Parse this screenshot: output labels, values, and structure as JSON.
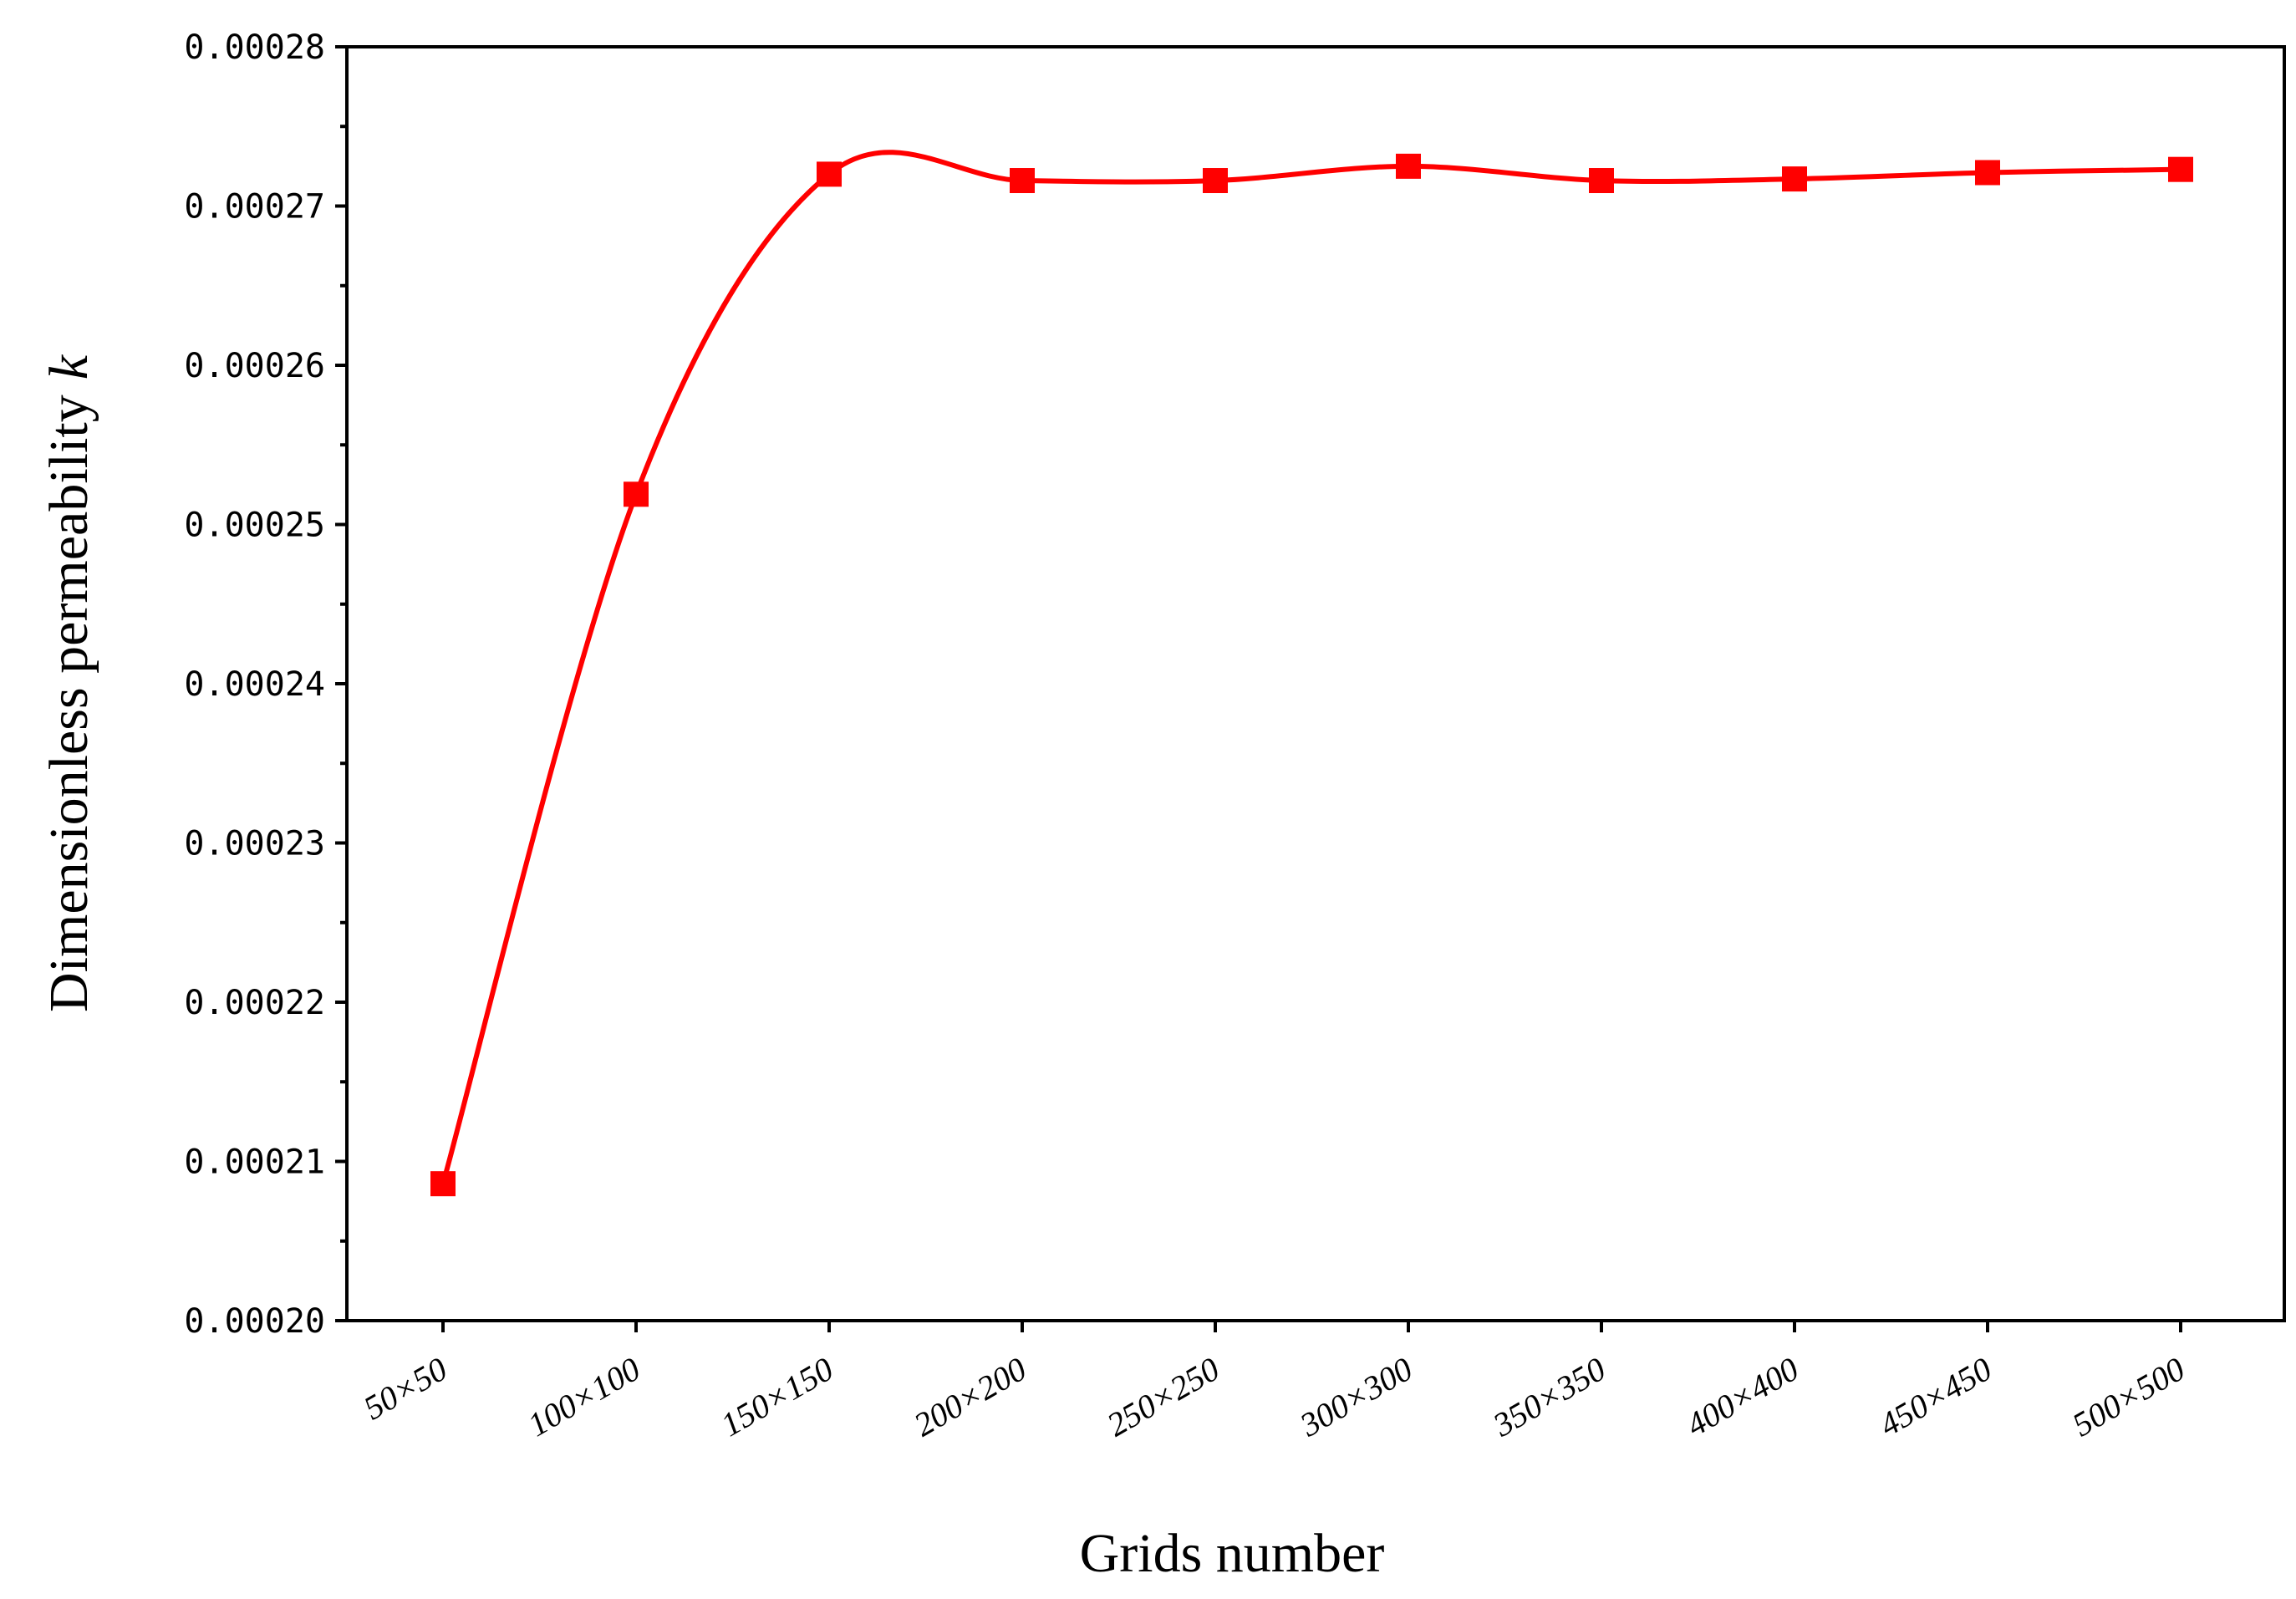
{
  "chart_data": {
    "type": "line",
    "xlabel": "Grids number",
    "ylabel": "Dimensionless permeability",
    "ylabel_symbol": "k",
    "categories": [
      "50×50",
      "100×100",
      "150×150",
      "200×200",
      "250×250",
      "300×300",
      "350×350",
      "400×400",
      "450×450",
      "500×500"
    ],
    "series": [
      {
        "values": [
          0.0002086,
          0.0002519,
          0.000272,
          0.0002716,
          0.0002716,
          0.0002725,
          0.0002716,
          0.0002717,
          0.0002721,
          0.0002723
        ],
        "color": "#ff0000",
        "marker": "square",
        "smooth": true
      }
    ],
    "ylim": [
      0.0002,
      0.00028
    ],
    "yticks": [
      "0.00020",
      "0.00021",
      "0.00022",
      "0.00023",
      "0.00024",
      "0.00025",
      "0.00026",
      "0.00027",
      "0.00028"
    ],
    "grid": false,
    "legend": "none"
  }
}
